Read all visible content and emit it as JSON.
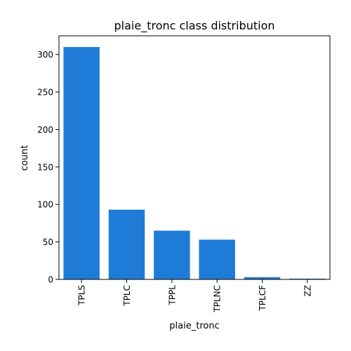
{
  "chart_data": {
    "type": "bar",
    "title": "plaie_tronc class distribution",
    "xlabel": "plaie_tronc",
    "ylabel": "count",
    "categories": [
      "TPLS",
      "TPLC",
      "TPPL",
      "TPLNC",
      "TPLCF",
      "ZZ"
    ],
    "values": [
      310,
      93,
      65,
      53,
      3,
      1
    ],
    "ylim": [
      0,
      325
    ],
    "yticks": [
      0,
      50,
      100,
      150,
      200,
      250,
      300
    ],
    "grid": false,
    "bar_color": "#1f7bd8"
  }
}
